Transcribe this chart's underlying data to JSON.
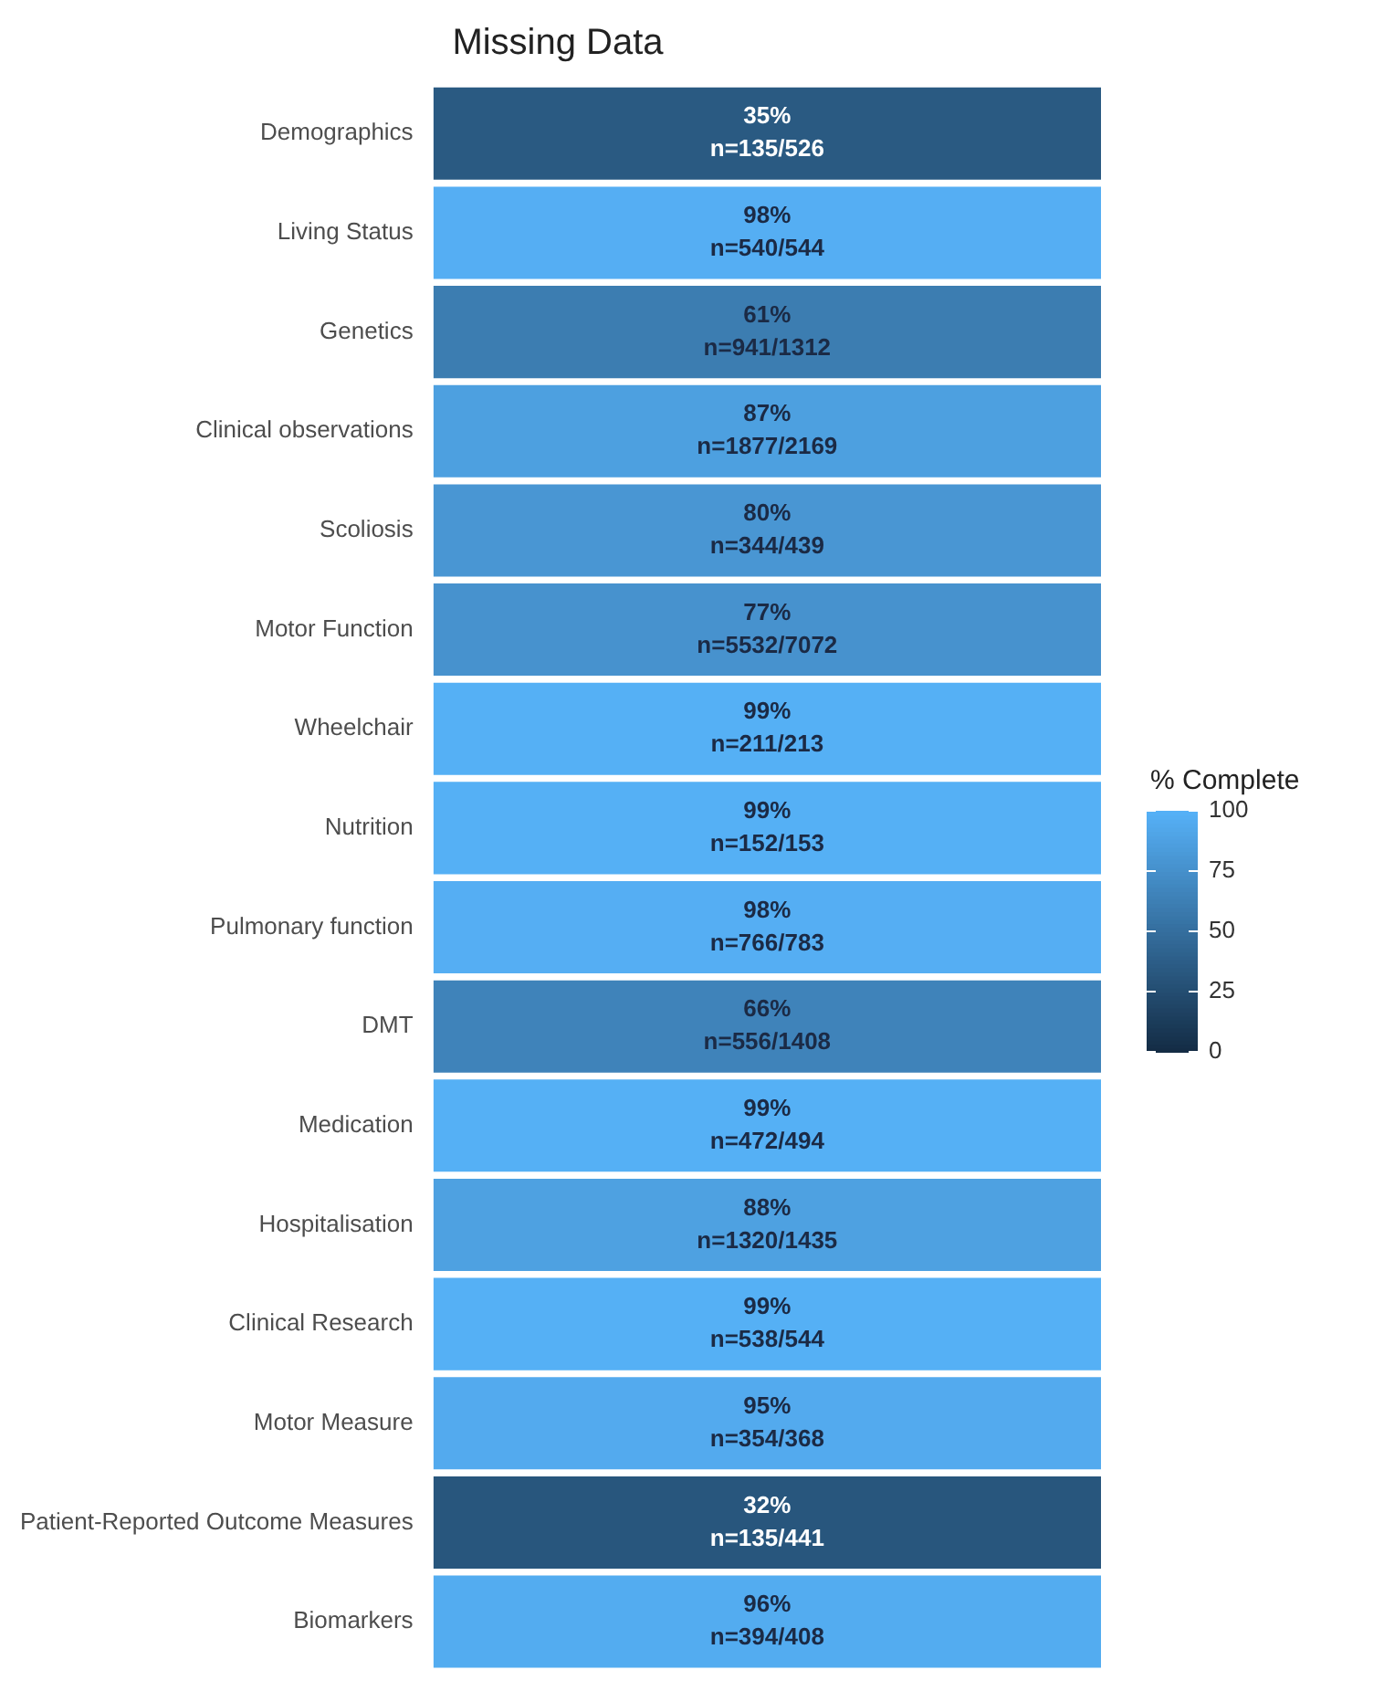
{
  "chart_data": {
    "type": "heatmap",
    "title": "Missing Data",
    "clabel": "% Complete",
    "categories": [
      null
    ],
    "y_categories": [
      "Demographics",
      "Living Status",
      "Genetics",
      "Clinical observations",
      "Scoliosis",
      "Motor Function",
      "Wheelchair",
      "Nutrition",
      "Pulmonary function",
      "DMT",
      "Medication",
      "Hospitalisation",
      "Clinical Research",
      "Motor Measure",
      "Patient-Reported Outcome Measures",
      "Biomarkers"
    ],
    "cells": [
      [
        35
      ],
      [
        98
      ],
      [
        61
      ],
      [
        87
      ],
      [
        80
      ],
      [
        77
      ],
      [
        99
      ],
      [
        99
      ],
      [
        98
      ],
      [
        66
      ],
      [
        99
      ],
      [
        88
      ],
      [
        99
      ],
      [
        95
      ],
      [
        32
      ],
      [
        96
      ]
    ],
    "cell_labels": [
      [
        "35%\nn=135/526"
      ],
      [
        "98%\nn=540/544"
      ],
      [
        "61%\nn=941/1312"
      ],
      [
        "87%\nn=1877/2169"
      ],
      [
        "80%\nn=344/439"
      ],
      [
        "77%\nn=5532/7072"
      ],
      [
        "99%\nn=211/213"
      ],
      [
        "99%\nn=152/153"
      ],
      [
        "98%\nn=766/783"
      ],
      [
        "66%\nn=556/1408"
      ],
      [
        "99%\nn=472/494"
      ],
      [
        "88%\nn=1320/1435"
      ],
      [
        "99%\nn=538/544"
      ],
      [
        "95%\nn=354/368"
      ],
      [
        "32%\nn=135/441"
      ],
      [
        "96%\nn=394/408"
      ]
    ],
    "clim": [
      0,
      100
    ],
    "cticks": [
      0,
      25,
      50,
      75,
      100
    ],
    "grid": false,
    "legend": false
  }
}
